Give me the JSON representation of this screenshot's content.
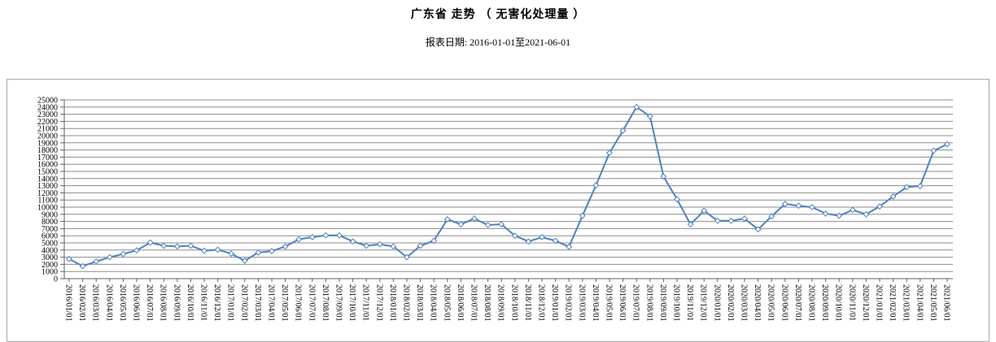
{
  "header": {
    "title": "广东省 走势 （ 无害化处理量 ）",
    "report_date": "报表日期: 2016-01-01至2021-06-01"
  },
  "chart_data": {
    "type": "line",
    "title": "广东省 走势 （ 无害化处理量 ）",
    "subtitle": "报表日期: 2016-01-01至2021-06-01",
    "xlabel": "",
    "ylabel": "",
    "ylim": [
      0,
      25000
    ],
    "grid": true,
    "legend": "none",
    "marker": "open-diamond",
    "y_ticks": [
      0,
      1000,
      2000,
      3000,
      4000,
      5000,
      6000,
      7000,
      8000,
      9000,
      10000,
      11000,
      12000,
      13000,
      14000,
      15000,
      16000,
      17000,
      18000,
      19000,
      20000,
      21000,
      22000,
      23000,
      24000,
      25000
    ],
    "x_labels": [
      "2016/01/01",
      "2016/02/01",
      "2016/03/01",
      "2016/04/01",
      "2016/05/01",
      "2016/06/01",
      "2016/07/01",
      "2016/08/01",
      "2016/09/01",
      "2016/10/01",
      "2016/11/01",
      "2016/12/01",
      "2017/01/01",
      "2017/02/01",
      "2017/03/01",
      "2017/04/01",
      "2017/05/01",
      "2017/06/01",
      "2017/07/01",
      "2017/08/01",
      "2017/09/01",
      "2017/10/01",
      "2017/11/01",
      "2017/12/01",
      "2018/01/01",
      "2018/02/01",
      "2018/03/01",
      "2018/04/01",
      "2018/05/01",
      "2018/06/01",
      "2018/07/01",
      "2018/08/01",
      "2018/09/01",
      "2018/10/01",
      "2018/11/01",
      "2018/12/01",
      "2019/01/01",
      "2019/02/01",
      "2019/03/01",
      "2019/04/01",
      "2019/05/01",
      "2019/06/01",
      "2019/07/01",
      "2019/08/01",
      "2019/09/01",
      "2019/10/01",
      "2019/11/01",
      "2019/12/01",
      "2020/01/01",
      "2020/02/01",
      "2020/03/01",
      "2020/04/01",
      "2020/05/01",
      "2020/06/01",
      "2020/07/01",
      "2020/08/01",
      "2020/09/01",
      "2020/10/01",
      "2020/11/01",
      "2020/12/01",
      "2021/01/01",
      "2021/02/01",
      "2021/03/01",
      "2021/04/01",
      "2021/05/01",
      "2021/06/01"
    ],
    "series": [
      {
        "name": "无害化处理量",
        "values": [
          2750,
          1750,
          2400,
          3000,
          3450,
          3950,
          5050,
          4600,
          4500,
          4600,
          3900,
          4050,
          3500,
          2500,
          3650,
          3850,
          4500,
          5500,
          5800,
          6050,
          6050,
          5200,
          4600,
          4800,
          4500,
          3000,
          4600,
          5300,
          8300,
          7600,
          8400,
          7500,
          7600,
          6000,
          5200,
          5800,
          5300,
          4450,
          8800,
          13050,
          17600,
          20700,
          24000,
          22700,
          14300,
          11100,
          7600,
          9500,
          8100,
          8100,
          8400,
          6900,
          8700,
          10450,
          10200,
          10000,
          9100,
          8800,
          9600,
          9000,
          10100,
          11500,
          12800,
          12950,
          17900,
          18800
        ]
      }
    ],
    "colors": {
      "line": "#4f81bd",
      "marker_fill": "#ffffff",
      "grid": "#8c8c8c",
      "axis": "#5f5f5f",
      "frame_border": "#ababab",
      "text": "#000000"
    }
  }
}
